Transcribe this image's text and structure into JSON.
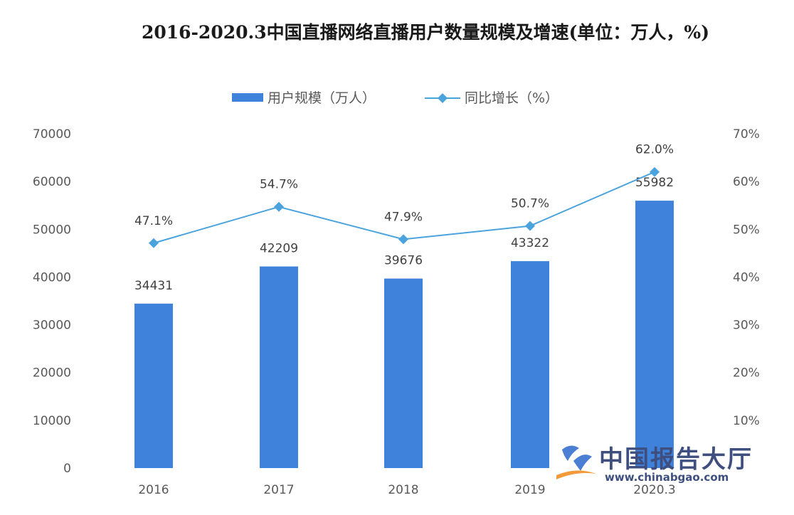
{
  "title": "2016-2020.3中国直播网络直播用户数量规模及增速(单位：万人，%)",
  "watermark": {
    "name": "中国报告大厅",
    "url": "www.chinabgao.com"
  },
  "colors": {
    "bar": "#3f82dc",
    "line": "#4aa3dd",
    "text": "#595959"
  },
  "chart_data": {
    "type": "bar",
    "categories": [
      "2016",
      "2017",
      "2018",
      "2019",
      "2020.3"
    ],
    "series": [
      {
        "name": "用户规模（万人）",
        "type": "bar",
        "axis": "left",
        "values": [
          34431,
          42209,
          39676,
          43322,
          55982
        ],
        "labels": [
          "34431",
          "42209",
          "39676",
          "43322",
          "55982"
        ]
      },
      {
        "name": "同比增长（%）",
        "type": "line",
        "axis": "right",
        "values": [
          47.1,
          54.7,
          47.9,
          50.7,
          62.0
        ],
        "labels": [
          "47.1%",
          "54.7%",
          "47.9%",
          "50.7%",
          "62.0%"
        ]
      }
    ],
    "y_left": {
      "min": 0,
      "max": 70000,
      "ticks": [
        "0",
        "10000",
        "20000",
        "30000",
        "40000",
        "50000",
        "60000",
        "70000"
      ]
    },
    "y_right": {
      "min": 0,
      "max": 70,
      "ticks": [
        "10%",
        "20%",
        "30%",
        "40%",
        "50%",
        "60%",
        "70%"
      ]
    },
    "legend_position": "top-center",
    "grid": false
  }
}
